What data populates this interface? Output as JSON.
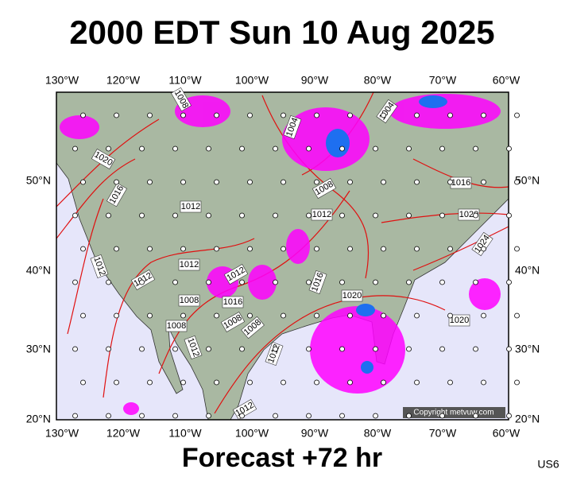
{
  "header": {
    "title": "2000 EDT Sun 10 Aug 2025"
  },
  "map": {
    "lon_labels": [
      "130°W",
      "120°W",
      "110°W",
      "100°W",
      "90°W",
      "80°W",
      "70°W",
      "60°W"
    ],
    "lat_labels": [
      "50°N",
      "40°N",
      "30°N",
      "20°N"
    ],
    "isobar_labels": [
      "1008",
      "1004",
      "1004",
      "1020",
      "1016",
      "1012",
      "1008",
      "1012",
      "1016",
      "1020",
      "1024",
      "1012",
      "1012",
      "1012",
      "1012",
      "1016",
      "1008",
      "1008",
      "1008",
      "1008",
      "1016",
      "1020",
      "1020",
      "1012",
      "1012",
      "1012"
    ],
    "copyright": "Copyright metvuw.com"
  },
  "footer": {
    "forecast": "Forecast +72 hr",
    "code": "US6"
  }
}
